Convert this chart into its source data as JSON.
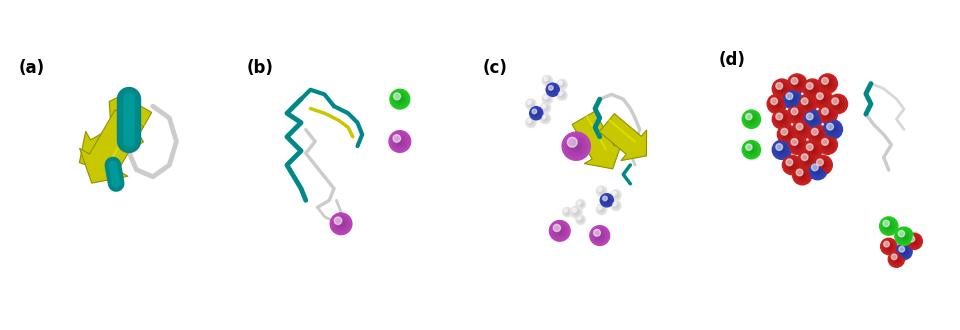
{
  "figsize": [
    9.6,
    3.3
  ],
  "dpi": 100,
  "background_color": "#ffffff",
  "panels": [
    "(a)",
    "(b)",
    "(c)",
    "(d)"
  ],
  "panel_label_fontsize": 12,
  "panel_label_bold": true,
  "panel_label_color": "#000000",
  "colors": {
    "yellow": "#c8c800",
    "yellow_dark": "#909000",
    "teal": "#008888",
    "teal_dark": "#005555",
    "gray_ribbon": "#cccccc",
    "gray_ribbon_dark": "#999999",
    "green_sphere": "#22cc22",
    "purple_sphere": "#bb44bb",
    "red_sphere": "#cc2222",
    "blue_sphere": "#3344bb",
    "white_sphere": "#e8e8e8",
    "white_sphere_dark": "#aaaaaa"
  }
}
